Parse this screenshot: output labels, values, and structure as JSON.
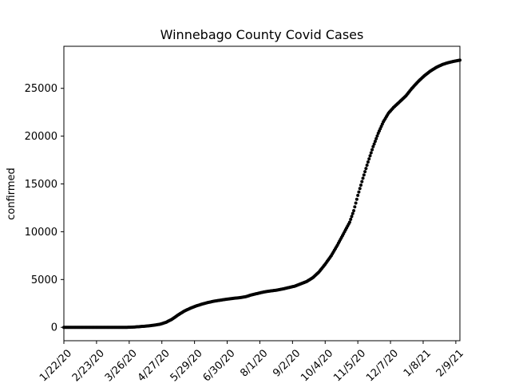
{
  "chart_data": {
    "type": "scatter",
    "title": "Winnebago County Covid Cases",
    "xlabel": "",
    "ylabel": "confirmed",
    "x_type": "date",
    "x_start": "2020-01-22",
    "x_end": "2021-02-13",
    "x_ticks": [
      "1/22/20",
      "2/23/20",
      "3/26/20",
      "4/27/20",
      "5/29/20",
      "6/30/20",
      "8/1/20",
      "9/2/20",
      "10/4/20",
      "11/5/20",
      "12/7/20",
      "1/8/21",
      "2/9/21"
    ],
    "y_ticks": [
      0,
      5000,
      10000,
      15000,
      20000,
      25000
    ],
    "ylim": [
      -1400,
      29400
    ],
    "grid": false,
    "marker_color": "#000000",
    "series": [
      {
        "points": [
          [
            "2020-01-22",
            0
          ],
          [
            "2020-03-20",
            0
          ],
          [
            "2020-03-26",
            5
          ],
          [
            "2020-04-01",
            40
          ],
          [
            "2020-04-07",
            90
          ],
          [
            "2020-04-13",
            140
          ],
          [
            "2020-04-19",
            220
          ],
          [
            "2020-04-25",
            320
          ],
          [
            "2020-05-01",
            520
          ],
          [
            "2020-05-07",
            850
          ],
          [
            "2020-05-13",
            1300
          ],
          [
            "2020-05-19",
            1700
          ],
          [
            "2020-05-25",
            2000
          ],
          [
            "2020-05-31",
            2250
          ],
          [
            "2020-06-06",
            2450
          ],
          [
            "2020-06-12",
            2620
          ],
          [
            "2020-06-18",
            2750
          ],
          [
            "2020-06-24",
            2850
          ],
          [
            "2020-06-30",
            2950
          ],
          [
            "2020-07-06",
            3030
          ],
          [
            "2020-07-12",
            3100
          ],
          [
            "2020-07-18",
            3200
          ],
          [
            "2020-07-24",
            3400
          ],
          [
            "2020-07-30",
            3550
          ],
          [
            "2020-08-05",
            3700
          ],
          [
            "2020-08-11",
            3800
          ],
          [
            "2020-08-17",
            3880
          ],
          [
            "2020-08-23",
            4000
          ],
          [
            "2020-08-29",
            4150
          ],
          [
            "2020-09-04",
            4300
          ],
          [
            "2020-09-10",
            4550
          ],
          [
            "2020-09-16",
            4800
          ],
          [
            "2020-09-22",
            5200
          ],
          [
            "2020-09-28",
            5800
          ],
          [
            "2020-10-04",
            6600
          ],
          [
            "2020-10-10",
            7500
          ],
          [
            "2020-10-16",
            8600
          ],
          [
            "2020-10-22",
            9800
          ],
          [
            "2020-10-28",
            11000
          ],
          [
            "2020-11-01",
            12200
          ],
          [
            "2020-11-05",
            13800
          ],
          [
            "2020-11-10",
            15600
          ],
          [
            "2020-11-15",
            17300
          ],
          [
            "2020-11-20",
            18900
          ],
          [
            "2020-11-25",
            20300
          ],
          [
            "2020-11-30",
            21500
          ],
          [
            "2020-12-05",
            22400
          ],
          [
            "2020-12-10",
            23000
          ],
          [
            "2020-12-16",
            23600
          ],
          [
            "2020-12-22",
            24200
          ],
          [
            "2020-12-28",
            25000
          ],
          [
            "2021-01-03",
            25700
          ],
          [
            "2021-01-09",
            26300
          ],
          [
            "2021-01-15",
            26800
          ],
          [
            "2021-01-21",
            27200
          ],
          [
            "2021-01-27",
            27500
          ],
          [
            "2021-02-02",
            27700
          ],
          [
            "2021-02-08",
            27850
          ],
          [
            "2021-02-13",
            27950
          ]
        ]
      }
    ]
  }
}
